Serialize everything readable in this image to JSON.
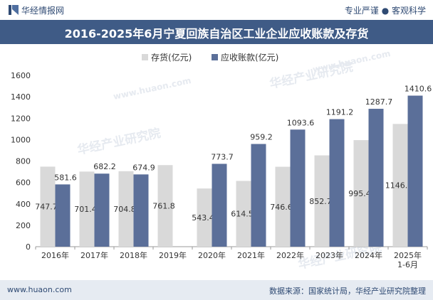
{
  "header": {
    "brand": "华经情报网",
    "slogan": "专业严谨 ● 客观科学"
  },
  "title": "2016-2025年6月宁夏回族自治区工业企业应收账款及存货",
  "footer": {
    "site": "www.huaon.com",
    "source": "数据来源：国家统计局，华经产业研究院整理"
  },
  "watermarks": [
    "华经产业研究院",
    "www.huaon.com"
  ],
  "colors": {
    "inventory": "#d9d9d9",
    "receivables": "#5b6f99",
    "header_band": "#3f5b86",
    "footer_band": "#e6ebf2"
  },
  "chart_data": {
    "type": "bar",
    "categories": [
      "2016年",
      "2017年",
      "2018年",
      "2019年",
      "2020年",
      "2021年",
      "2022年",
      "2023年",
      "2024年",
      "2025年\n1-6月"
    ],
    "series": [
      {
        "name": "存货(亿元)",
        "values": [
          747.7,
          701.4,
          704.8,
          761.8,
          543.4,
          614.5,
          746.6,
          852.7,
          995.4,
          1146.4
        ]
      },
      {
        "name": "应收账款(亿元)",
        "values": [
          581.6,
          682.2,
          674.9,
          null,
          773.7,
          959.2,
          1093.6,
          1191.2,
          1287.7,
          1410.6
        ]
      }
    ],
    "ylim": [
      0,
      1600
    ],
    "yticks": [
      0,
      200,
      400,
      600,
      800,
      1000,
      1200,
      1400,
      1600
    ],
    "legend_position": "top-center",
    "grid": false
  }
}
